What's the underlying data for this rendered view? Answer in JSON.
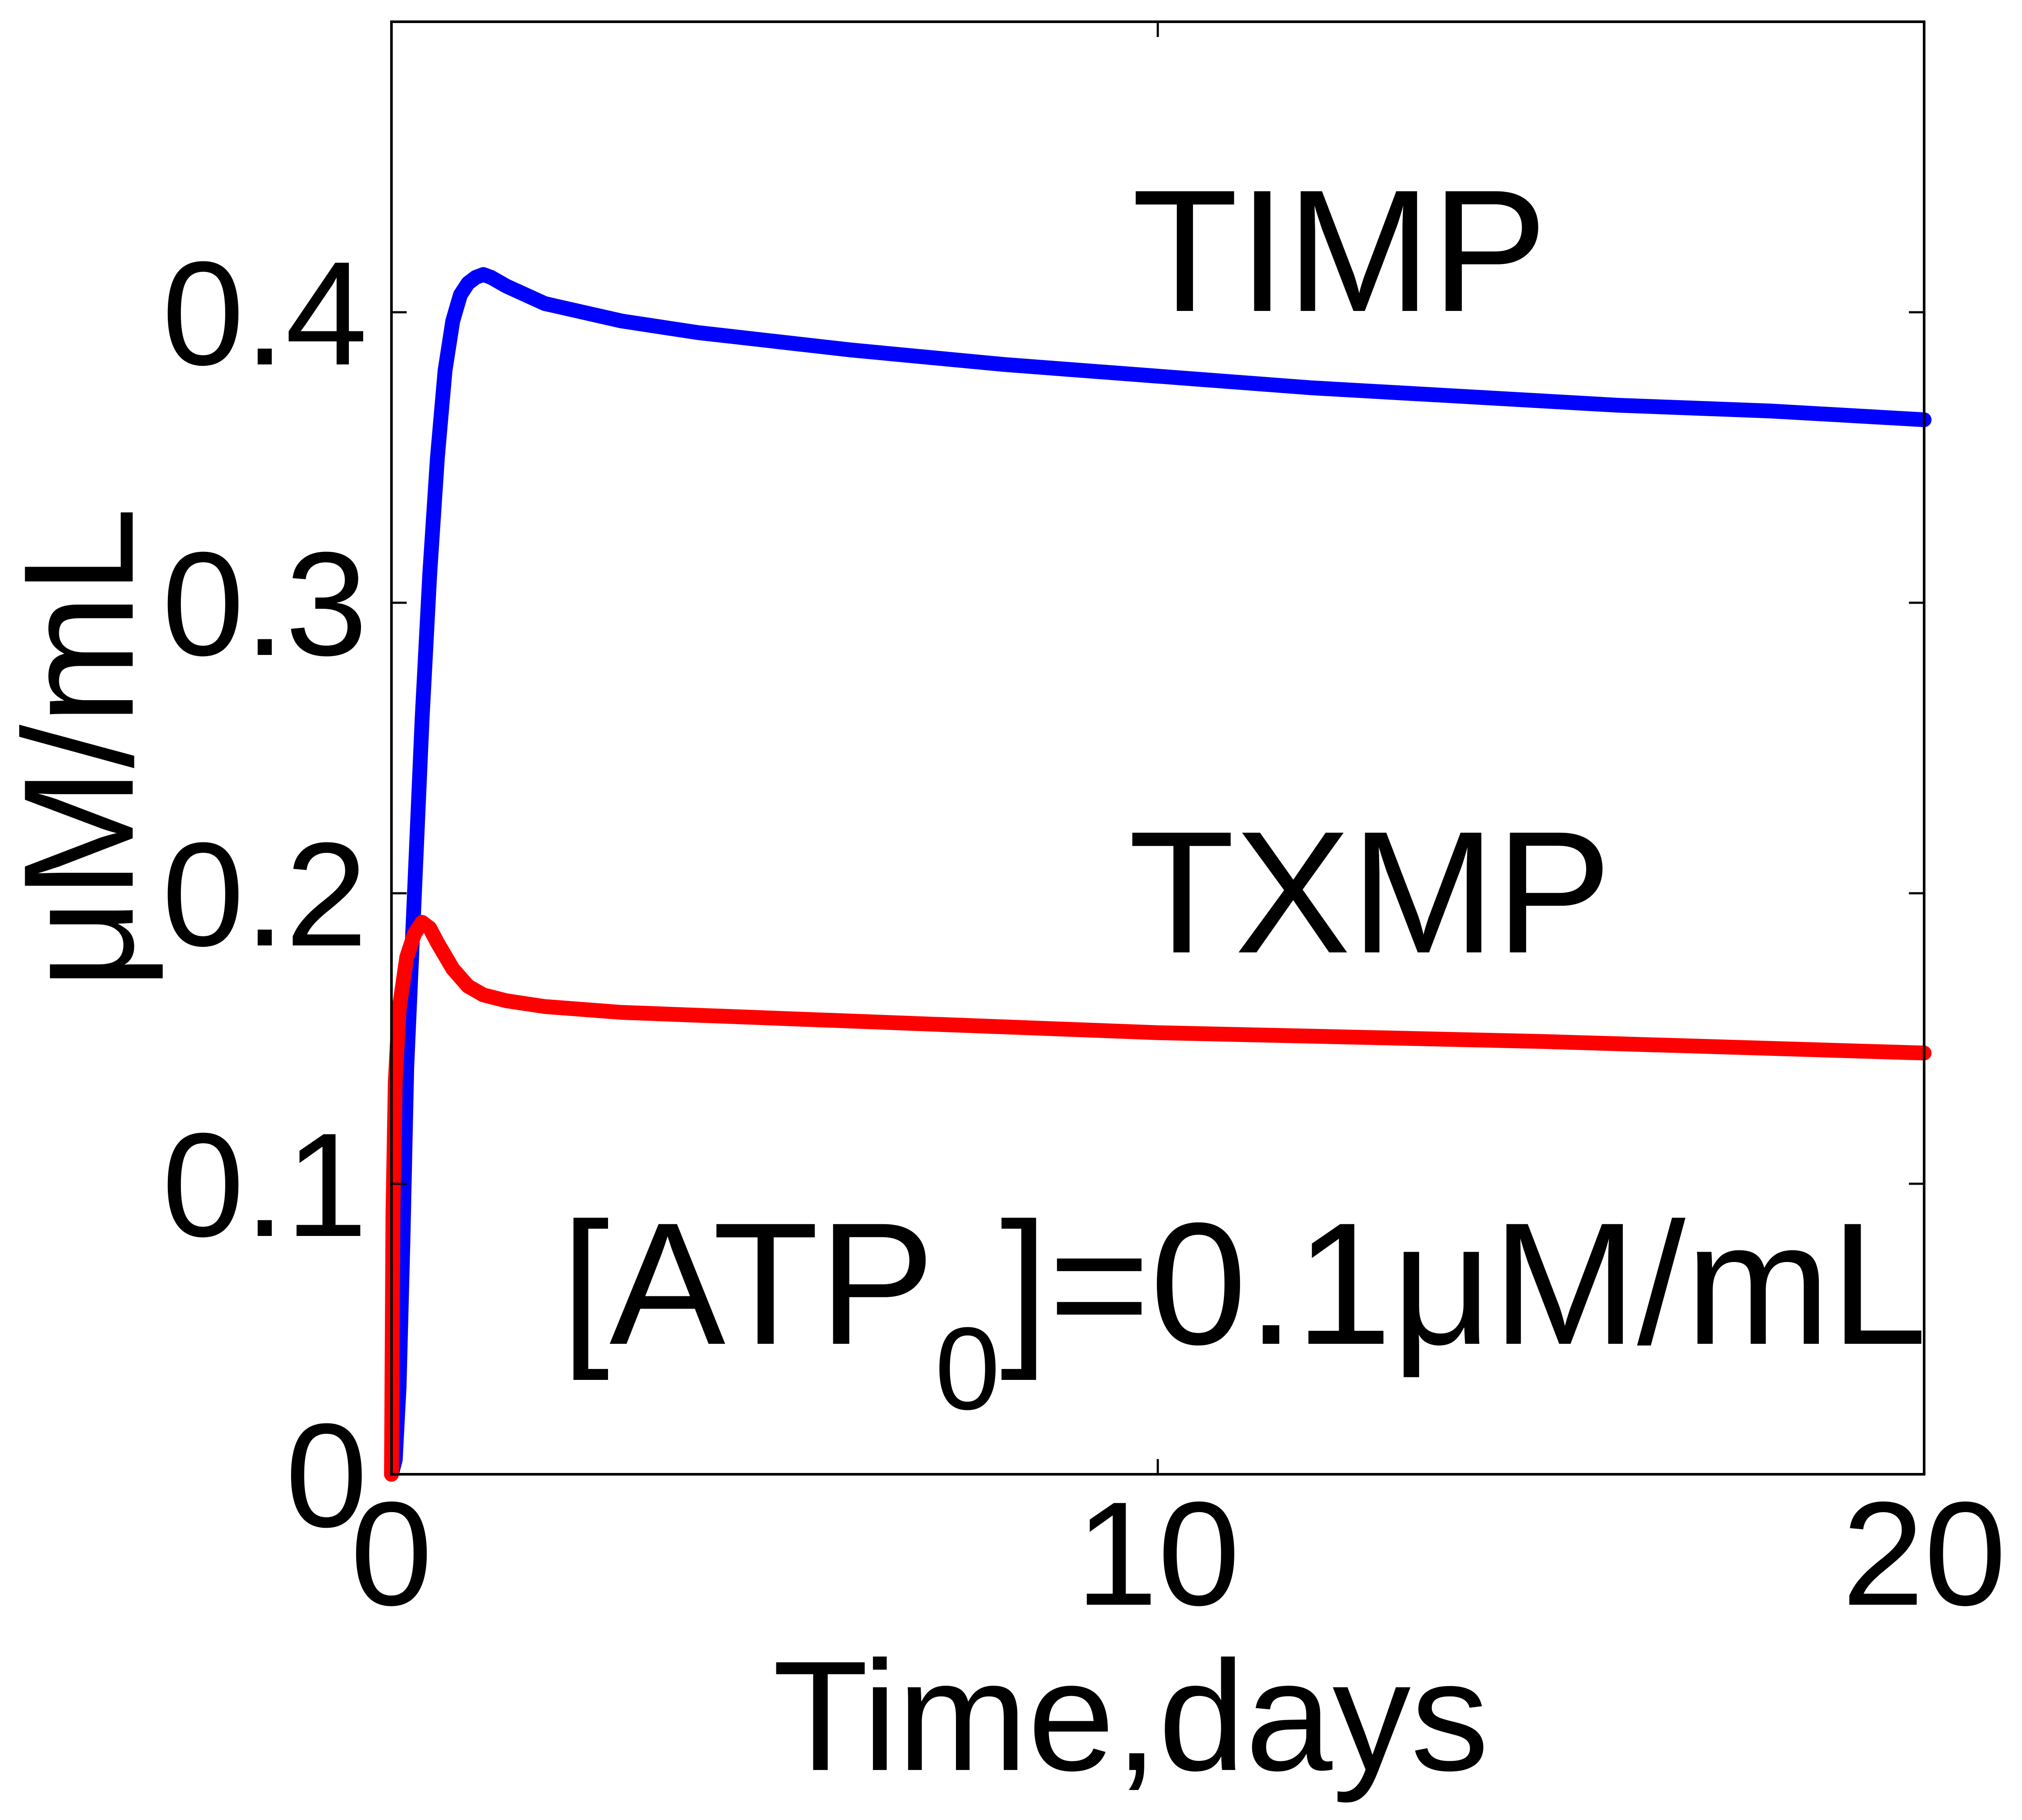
{
  "chart_data": {
    "type": "line",
    "xlabel": "Time,days",
    "ylabel": "μM/mL",
    "xlim": [
      0,
      20
    ],
    "ylim": [
      0,
      0.5
    ],
    "xticks": [
      0,
      10,
      20
    ],
    "yticks": [
      0,
      0.1,
      0.2,
      0.3,
      0.4
    ],
    "xtick_labels": [
      "0",
      "10",
      "20"
    ],
    "ytick_labels": [
      "0",
      "0.1",
      "0.2",
      "0.3",
      "0.4"
    ],
    "grid": false,
    "annotations": {
      "timp": "TIMP",
      "txmp": "TXMP",
      "atp_open": "[ATP",
      "atp_sub": "0",
      "atp_close": "]=0.1μM/mL"
    },
    "series": [
      {
        "color": "#0000ff",
        "x": [
          0,
          0.05,
          0.1,
          0.15,
          0.2,
          0.3,
          0.4,
          0.5,
          0.6,
          0.7,
          0.8,
          0.9,
          1.0,
          1.1,
          1.2,
          1.3,
          1.5,
          2,
          3,
          4,
          5,
          6,
          8,
          10,
          12,
          14,
          16,
          18,
          20
        ],
        "y": [
          0,
          0.005,
          0.03,
          0.08,
          0.14,
          0.2,
          0.26,
          0.31,
          0.35,
          0.38,
          0.397,
          0.406,
          0.41,
          0.412,
          0.413,
          0.412,
          0.409,
          0.403,
          0.397,
          0.393,
          0.39,
          0.387,
          0.382,
          0.378,
          0.374,
          0.371,
          0.368,
          0.366,
          0.363
        ]
      },
      {
        "color": "#ff0000",
        "x": [
          0,
          0.02,
          0.05,
          0.1,
          0.2,
          0.3,
          0.4,
          0.5,
          0.6,
          0.8,
          1.0,
          1.2,
          1.5,
          2,
          3,
          5,
          8,
          10,
          15,
          20
        ],
        "y": [
          0,
          0.09,
          0.135,
          0.16,
          0.178,
          0.186,
          0.19,
          0.188,
          0.183,
          0.174,
          0.168,
          0.165,
          0.163,
          0.161,
          0.159,
          0.157,
          0.154,
          0.152,
          0.149,
          0.145
        ]
      }
    ]
  }
}
